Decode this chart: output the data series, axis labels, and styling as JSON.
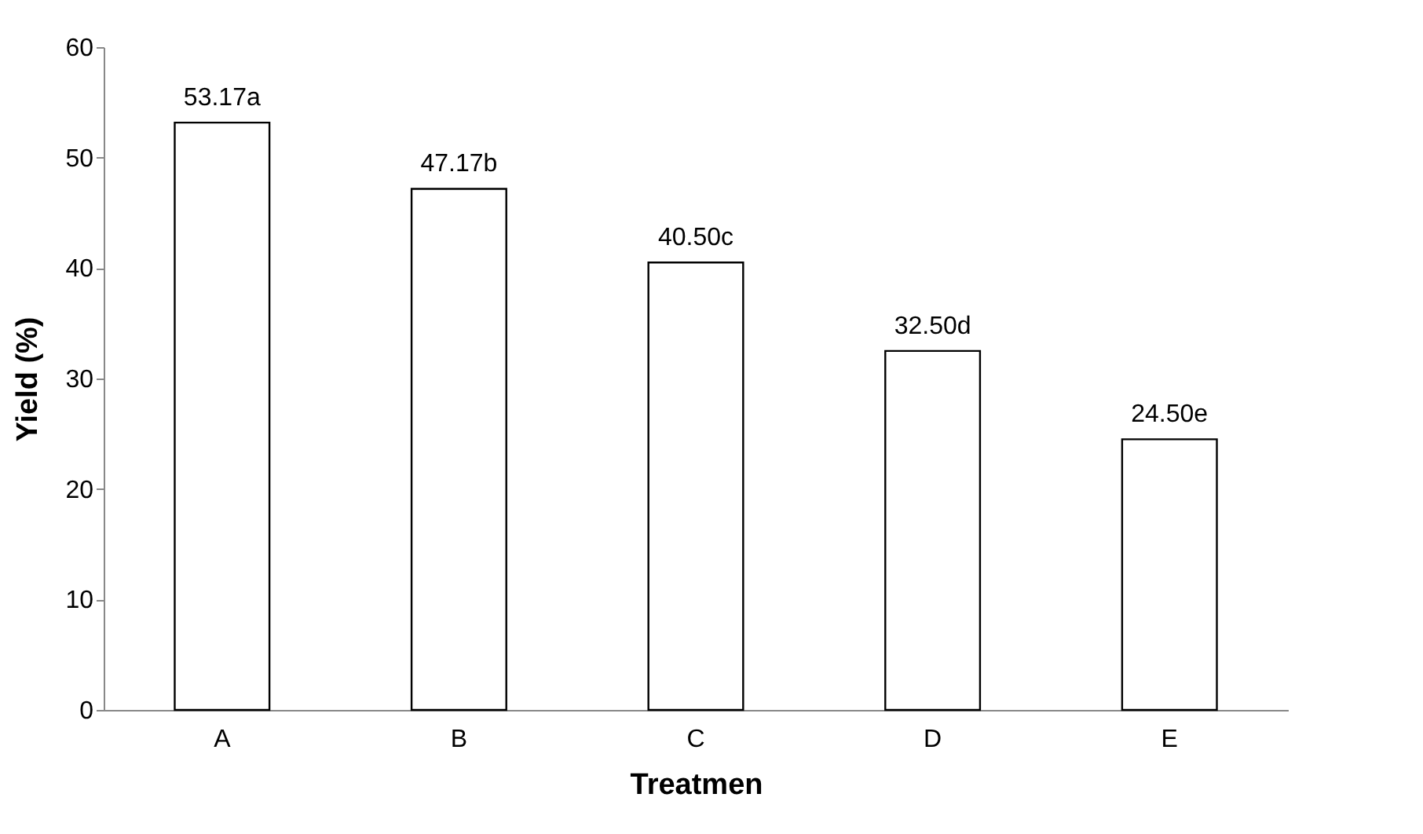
{
  "chart_data": {
    "type": "bar",
    "xlabel": "Treatmen",
    "ylabel": "Yield (%)",
    "categories": [
      "A",
      "B",
      "C",
      "D",
      "E"
    ],
    "values": [
      53.17,
      47.17,
      40.5,
      32.5,
      24.5
    ],
    "value_labels": [
      "53.17a",
      "47.17b",
      "40.50c",
      "32.50d",
      "24.50e"
    ],
    "color": "#ffffff",
    "ylim": [
      0,
      60
    ],
    "yticks": [
      0,
      10,
      20,
      30,
      40,
      50,
      60
    ],
    "grid": false
  }
}
